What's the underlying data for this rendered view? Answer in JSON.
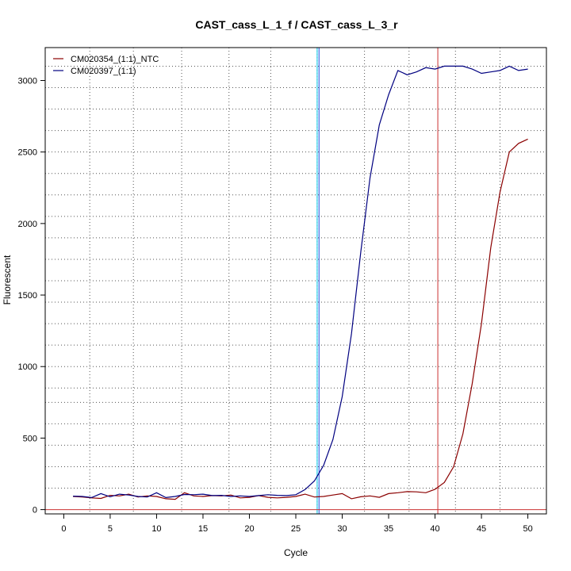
{
  "chart_data": {
    "type": "line",
    "title": "CAST_cass_L_1_f / CAST_cass_L_3_r",
    "xlabel": "Cycle",
    "ylabel": "Fluorescent",
    "xlim": [
      -2,
      52
    ],
    "ylim": [
      -30,
      3230
    ],
    "x_ticks": [
      0,
      5,
      10,
      15,
      20,
      25,
      30,
      35,
      40,
      45,
      50
    ],
    "y_ticks": [
      0,
      500,
      1000,
      1500,
      2000,
      2500,
      3000
    ],
    "grid": "dotted",
    "grid_x": [
      2.8,
      7.5,
      12.7,
      17.8,
      22.3,
      27.3,
      32.4,
      37.2,
      42.2,
      47.0
    ],
    "grid_y": [
      150,
      300,
      450,
      600,
      750,
      850,
      1000,
      1150,
      1300,
      1450,
      1600,
      1750,
      1900,
      2050,
      2200,
      2350,
      2500,
      2650,
      2800,
      2950,
      3100
    ],
    "legend_position": "top-left",
    "threshold_lines": [
      {
        "axis": "x",
        "value": 27.3,
        "color": "#00c8e8"
      },
      {
        "axis": "x",
        "value": 27.5,
        "color": "#2050e0"
      },
      {
        "axis": "x",
        "value": 40.3,
        "color": "#cc3333"
      },
      {
        "axis": "y",
        "value": 0,
        "color": "#cc3333"
      }
    ],
    "x": [
      1,
      2,
      3,
      4,
      5,
      6,
      7,
      8,
      9,
      10,
      11,
      12,
      13,
      14,
      15,
      16,
      17,
      18,
      19,
      20,
      21,
      22,
      23,
      24,
      25,
      26,
      27,
      28,
      29,
      30,
      31,
      32,
      33,
      34,
      35,
      36,
      37,
      38,
      39,
      40,
      41,
      42,
      43,
      44,
      45,
      46,
      47,
      48,
      49,
      50
    ],
    "series": [
      {
        "name": "CM020354_(1:1)_NTC",
        "color": "#8b0000",
        "values": [
          92,
          88,
          82,
          78,
          100,
          96,
          108,
          88,
          96,
          92,
          76,
          72,
          118,
          96,
          92,
          98,
          96,
          102,
          82,
          86,
          98,
          86,
          82,
          86,
          92,
          108,
          88,
          92,
          102,
          112,
          76,
          90,
          96,
          86,
          112,
          118,
          126,
          124,
          118,
          142,
          190,
          300,
          530,
          880,
          1300,
          1830,
          2220,
          2500,
          2560,
          2590
        ]
      },
      {
        "name": "CM020397_(1:1)",
        "color": "#000080",
        "values": [
          94,
          92,
          84,
          112,
          90,
          108,
          102,
          92,
          88,
          118,
          84,
          92,
          106,
          104,
          108,
          98,
          100,
          92,
          96,
          92,
          98,
          104,
          100,
          98,
          104,
          140,
          200,
          310,
          490,
          790,
          1230,
          1800,
          2320,
          2690,
          2900,
          3070,
          3040,
          3060,
          3090,
          3080,
          3100,
          3100,
          3100,
          3080,
          3050,
          3060,
          3070,
          3100,
          3070,
          3080
        ]
      }
    ]
  }
}
